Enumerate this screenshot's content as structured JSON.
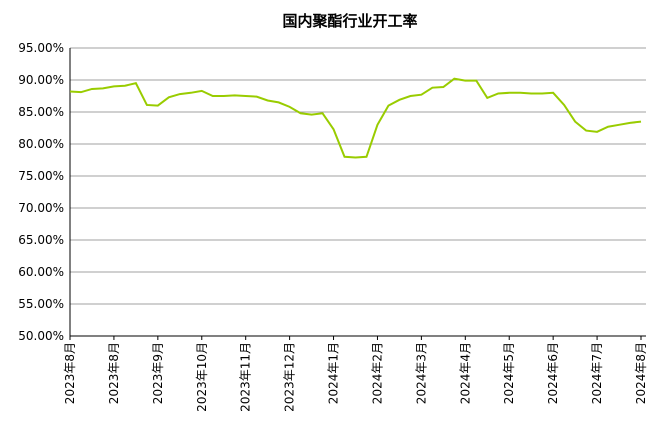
{
  "chart_data": {
    "type": "line",
    "title": "国内聚酯行业开工率",
    "categories": [
      "2023年8月",
      null,
      null,
      null,
      "2023年8月",
      null,
      null,
      null,
      "2023年9月",
      null,
      null,
      null,
      "2023年10月",
      null,
      null,
      null,
      "2023年11月",
      null,
      null,
      null,
      "2023年12月",
      null,
      null,
      null,
      "2024年1月",
      null,
      null,
      null,
      "2024年2月",
      null,
      null,
      null,
      "2024年3月",
      null,
      null,
      null,
      "2024年4月",
      null,
      null,
      null,
      "2024年5月",
      null,
      null,
      null,
      "2024年6月",
      null,
      null,
      null,
      "2024年7月",
      null,
      null,
      null,
      "2024年8月"
    ],
    "series": [
      {
        "color": "#99cc00",
        "values": [
          88.2,
          88.1,
          88.6,
          88.7,
          89.0,
          89.1,
          89.5,
          86.1,
          86.0,
          87.3,
          87.8,
          88.0,
          88.3,
          87.5,
          87.5,
          87.6,
          87.5,
          87.4,
          86.8,
          86.5,
          85.8,
          84.8,
          84.6,
          84.8,
          82.3,
          78.0,
          77.9,
          78.0,
          83.0,
          86.0,
          86.9,
          87.5,
          87.7,
          88.8,
          88.9,
          90.2,
          89.9,
          89.9,
          87.2,
          87.9,
          88.0,
          88.0,
          87.9,
          87.9,
          88.0,
          86.1,
          83.5,
          82.1,
          81.9,
          82.7,
          83.0,
          83.3,
          83.5
        ]
      }
    ],
    "ylim": [
      50,
      95
    ],
    "yticks": [
      {
        "value": 50,
        "label": "50.00%"
      },
      {
        "value": 55,
        "label": "55.00%"
      },
      {
        "value": 60,
        "label": "60.00%"
      },
      {
        "value": 65,
        "label": "65.00%"
      },
      {
        "value": 70,
        "label": "70.00%"
      },
      {
        "value": 75,
        "label": "75.00%"
      },
      {
        "value": 80,
        "label": "80.00%"
      },
      {
        "value": 85,
        "label": "85.00%"
      },
      {
        "value": 90,
        "label": "90.00%"
      },
      {
        "value": 95,
        "label": "95.00%"
      }
    ],
    "grid": true
  }
}
